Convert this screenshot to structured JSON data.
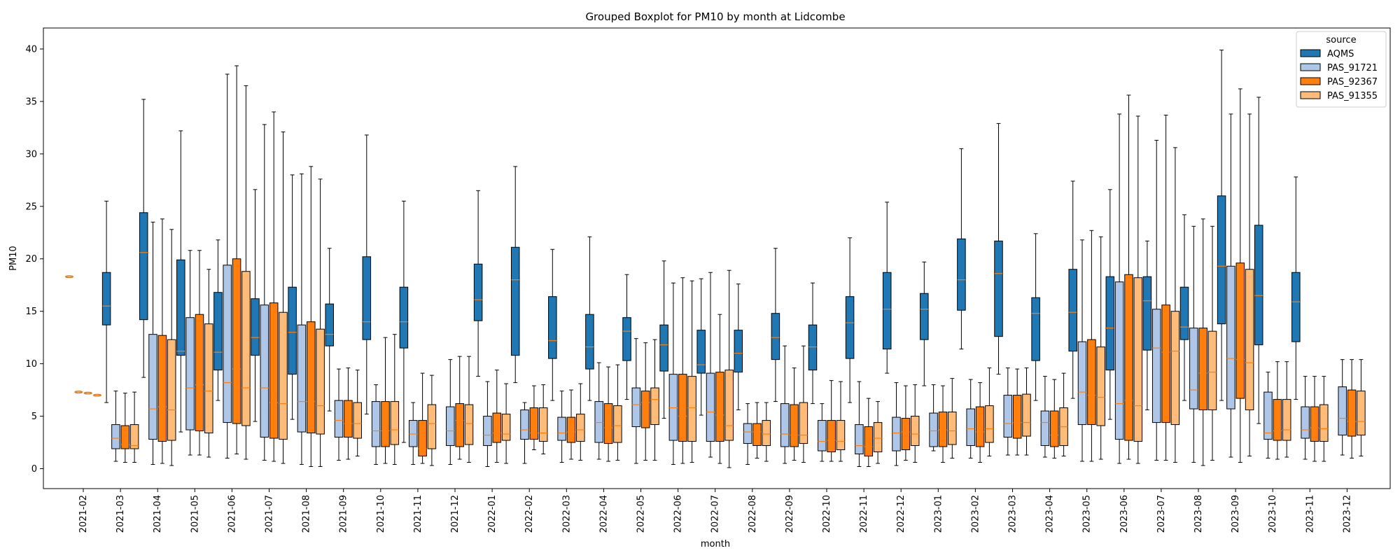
{
  "chart_data": {
    "type": "boxplot",
    "title": "Grouped Boxplot for PM10 by month at Lidcombe",
    "xlabel": "month",
    "ylabel": "PM10",
    "ylim": [
      -1.9,
      42.0
    ],
    "yticks": [
      0,
      5,
      10,
      15,
      20,
      25,
      30,
      35,
      40
    ],
    "grid": false,
    "legend": {
      "title": "source",
      "placement": "top-right"
    },
    "months": [
      "2021-02",
      "2021-03",
      "2021-04",
      "2021-05",
      "2021-06",
      "2021-07",
      "2021-08",
      "2021-09",
      "2021-10",
      "2021-11",
      "2021-12",
      "2022-01",
      "2022-02",
      "2022-03",
      "2022-04",
      "2022-05",
      "2022-06",
      "2022-07",
      "2022-08",
      "2022-09",
      "2022-10",
      "2022-11",
      "2022-12",
      "2023-01",
      "2023-02",
      "2023-03",
      "2023-04",
      "2023-05",
      "2023-06",
      "2023-07",
      "2023-08",
      "2023-09",
      "2023-10",
      "2023-11",
      "2023-12"
    ],
    "series": [
      {
        "name": "AQMS",
        "color": "#1f77b4",
        "boxes": [
          null,
          [
            6.3,
            13.7,
            15.5,
            18.7,
            25.5
          ],
          [
            8.7,
            14.2,
            20.6,
            24.4,
            35.2
          ],
          [
            3.5,
            10.8,
            11.2,
            19.9,
            32.2
          ],
          [
            6.5,
            9.4,
            11.1,
            16.8,
            21.8
          ],
          [
            4.5,
            10.8,
            12.5,
            16.2,
            26.6
          ],
          [
            4.7,
            9.0,
            13.0,
            17.3,
            28.0
          ],
          [
            5.5,
            11.7,
            12.8,
            15.7,
            21.0
          ],
          [
            5.2,
            12.3,
            14.0,
            20.2,
            31.8
          ],
          [
            2.5,
            11.5,
            14.0,
            17.3,
            25.5
          ],
          null,
          [
            8.8,
            14.1,
            16.1,
            19.5,
            26.5
          ],
          [
            8.2,
            10.8,
            18.0,
            21.1,
            28.8
          ],
          [
            6.5,
            10.5,
            12.2,
            16.4,
            20.9
          ],
          [
            6.5,
            9.5,
            11.6,
            14.7,
            22.1
          ],
          [
            6.6,
            10.3,
            13.1,
            14.4,
            18.5
          ],
          [
            4.8,
            9.3,
            11.8,
            13.7,
            19.8
          ],
          [
            5.1,
            9.1,
            9.9,
            13.2,
            18.1
          ],
          [
            5.6,
            9.2,
            11.0,
            13.2,
            17.6
          ],
          [
            6.4,
            10.4,
            12.5,
            14.8,
            21.0
          ],
          [
            6.2,
            9.4,
            11.6,
            13.7,
            17.7
          ],
          [
            6.3,
            10.5,
            13.9,
            16.4,
            22.0
          ],
          [
            9.1,
            11.4,
            15.2,
            18.7,
            25.4
          ],
          [
            7.9,
            12.3,
            15.2,
            16.7,
            19.7
          ],
          [
            11.4,
            15.1,
            18.0,
            21.9,
            30.5
          ],
          [
            9.0,
            12.6,
            18.6,
            21.7,
            32.9
          ],
          [
            6.5,
            10.3,
            14.8,
            16.3,
            22.4
          ],
          [
            6.7,
            11.2,
            14.9,
            19.0,
            27.4
          ],
          [
            4.7,
            9.4,
            13.4,
            18.3,
            26.6
          ],
          [
            5.6,
            11.3,
            16.0,
            18.3,
            21.7
          ],
          [
            6.5,
            12.3,
            13.5,
            17.3,
            24.2
          ],
          [
            6.5,
            13.8,
            19.3,
            26.0,
            39.9
          ],
          [
            4.3,
            11.8,
            16.5,
            23.2,
            35.4
          ],
          [
            6.6,
            12.1,
            15.9,
            18.7,
            27.8
          ],
          null
        ]
      },
      {
        "name": "PAS_91721",
        "color": "#aec7e8",
        "boxes": [
          null,
          [
            0.7,
            1.9,
            2.9,
            4.2,
            7.4
          ],
          [
            0.4,
            2.8,
            5.7,
            12.8,
            23.5
          ],
          [
            1.3,
            3.7,
            7.7,
            14.4,
            20.8
          ],
          [
            1.0,
            4.4,
            8.2,
            19.4,
            37.6
          ],
          [
            0.8,
            3.0,
            7.7,
            15.6,
            32.8
          ],
          [
            0.4,
            3.5,
            6.4,
            13.7,
            28.1
          ],
          [
            0.8,
            3.0,
            4.6,
            6.5,
            9.5
          ],
          [
            0.4,
            2.1,
            3.6,
            6.4,
            8.0
          ],
          [
            0.4,
            2.1,
            3.3,
            4.6,
            6.3
          ],
          [
            0.4,
            2.2,
            3.6,
            5.9,
            10.4
          ],
          [
            0.2,
            2.2,
            3.2,
            5.0,
            8.3
          ],
          [
            0.5,
            2.8,
            3.7,
            5.6,
            6.3
          ],
          [
            0.6,
            2.7,
            3.4,
            4.9,
            7.4
          ],
          [
            0.9,
            2.5,
            4.4,
            6.4,
            10.1
          ],
          [
            0.5,
            4.0,
            6.1,
            7.7,
            12.4
          ],
          [
            0.4,
            2.7,
            5.8,
            9.0,
            17.7
          ],
          [
            1.1,
            2.6,
            5.4,
            9.1,
            18.7
          ],
          [
            0.4,
            2.4,
            3.5,
            4.3,
            6.2
          ],
          [
            0.5,
            2.1,
            3.3,
            6.2,
            11.7
          ],
          [
            0.7,
            1.7,
            2.6,
            4.6,
            6.2
          ],
          [
            0.2,
            1.4,
            2.2,
            4.2,
            8.3
          ],
          [
            0.3,
            1.7,
            3.4,
            4.9,
            8.2
          ],
          [
            1.7,
            2.1,
            3.6,
            5.3,
            8.0
          ],
          [
            1.0,
            2.2,
            3.8,
            5.7,
            8.5
          ],
          [
            1.3,
            3.0,
            4.3,
            7.0,
            9.6
          ],
          [
            1.1,
            2.2,
            4.4,
            5.5,
            8.8
          ],
          [
            0.7,
            4.2,
            7.3,
            12.1,
            21.8
          ],
          [
            0.5,
            2.8,
            6.2,
            17.8,
            33.8
          ],
          [
            0.8,
            4.4,
            11.5,
            15.2,
            31.3
          ],
          [
            0.6,
            5.7,
            7.5,
            13.4,
            23.1
          ],
          [
            1.1,
            5.7,
            10.5,
            19.3,
            33.8
          ],
          [
            1.0,
            2.8,
            3.4,
            7.3,
            9.2
          ],
          [
            0.9,
            2.9,
            3.7,
            5.9,
            8.8
          ],
          [
            1.3,
            3.2,
            4.8,
            7.8,
            10.4
          ]
        ]
      },
      {
        "name": "PAS_92367",
        "color": "#ff7f0e",
        "boxes": [
          null,
          [
            0.6,
            1.9,
            2.3,
            4.1,
            7.2
          ],
          [
            0.5,
            2.6,
            5.9,
            12.7,
            23.8
          ],
          [
            1.3,
            3.6,
            8.0,
            14.7,
            20.8
          ],
          [
            1.4,
            4.3,
            9.5,
            20.0,
            38.4
          ],
          [
            0.7,
            2.9,
            6.3,
            15.8,
            34.0
          ],
          [
            0.2,
            3.4,
            6.4,
            14.0,
            28.8
          ],
          [
            0.9,
            3.0,
            4.3,
            6.5,
            9.6
          ],
          [
            0.5,
            2.1,
            3.6,
            6.4,
            12.5
          ],
          [
            0.5,
            1.2,
            1.9,
            4.6,
            9.1
          ],
          [
            0.9,
            2.1,
            4.6,
            6.2,
            10.7
          ],
          [
            0.6,
            2.5,
            3.4,
            5.3,
            9.4
          ],
          [
            1.8,
            2.8,
            3.4,
            5.8,
            7.9
          ],
          [
            0.9,
            2.5,
            3.5,
            4.9,
            7.5
          ],
          [
            0.7,
            2.4,
            3.9,
            6.2,
            9.7
          ],
          [
            0.8,
            3.9,
            6.3,
            7.4,
            12.0
          ],
          [
            0.5,
            2.6,
            5.0,
            9.0,
            18.2
          ],
          [
            0.5,
            2.6,
            5.1,
            9.2,
            14.7
          ],
          [
            1.0,
            2.2,
            3.5,
            4.3,
            6.3
          ],
          [
            0.8,
            2.1,
            3.2,
            6.1,
            9.6
          ],
          [
            0.7,
            1.6,
            2.7,
            4.6,
            8.4
          ],
          [
            0.2,
            1.2,
            2.1,
            4.0,
            6.7
          ],
          [
            0.8,
            1.8,
            3.5,
            4.8,
            7.9
          ],
          [
            0.6,
            2.1,
            3.7,
            5.4,
            7.9
          ],
          [
            0.6,
            2.1,
            3.5,
            5.9,
            8.2
          ],
          [
            1.3,
            2.9,
            4.4,
            7.0,
            9.5
          ],
          [
            1.0,
            2.1,
            3.2,
            5.5,
            8.5
          ],
          [
            0.7,
            4.2,
            7.0,
            12.3,
            22.7
          ],
          [
            0.9,
            2.7,
            6.5,
            18.5,
            35.6
          ],
          [
            0.8,
            4.4,
            11.1,
            15.6,
            33.7
          ],
          [
            0.3,
            5.6,
            9.1,
            13.4,
            23.8
          ],
          [
            0.6,
            6.7,
            10.4,
            19.6,
            36.2
          ],
          [
            0.9,
            2.7,
            3.6,
            6.6,
            10.2
          ],
          [
            0.7,
            2.6,
            3.9,
            5.9,
            8.8
          ],
          [
            1.0,
            3.1,
            4.5,
            7.5,
            10.4
          ]
        ]
      },
      {
        "name": "PAS_91355",
        "color": "#ffbb78",
        "boxes": [
          null,
          [
            0.6,
            1.9,
            2.2,
            4.2,
            7.3
          ],
          [
            0.3,
            2.7,
            5.6,
            12.3,
            22.8
          ],
          [
            1.1,
            3.4,
            7.4,
            13.8,
            19.0
          ],
          [
            0.9,
            4.1,
            7.7,
            18.8,
            36.5
          ],
          [
            0.5,
            2.8,
            6.2,
            14.9,
            32.1
          ],
          [
            0.2,
            3.3,
            6.0,
            13.3,
            27.6
          ],
          [
            1.2,
            2.9,
            4.3,
            6.3,
            9.4
          ],
          [
            0.4,
            2.3,
            3.7,
            6.4,
            12.8
          ],
          [
            0.3,
            1.9,
            4.3,
            6.1,
            8.9
          ],
          [
            0.6,
            2.3,
            4.3,
            6.1,
            10.7
          ],
          [
            0.5,
            2.7,
            3.3,
            5.2,
            8.1
          ],
          [
            1.4,
            2.6,
            3.4,
            5.8,
            8.0
          ],
          [
            0.8,
            2.6,
            3.7,
            5.2,
            8.1
          ],
          [
            0.8,
            2.5,
            4.1,
            6.0,
            9.9
          ],
          [
            0.8,
            4.2,
            6.6,
            7.7,
            12.3
          ],
          [
            0.6,
            2.6,
            5.8,
            8.8,
            17.9
          ],
          [
            0.1,
            2.7,
            4.1,
            9.4,
            18.9
          ],
          [
            0.7,
            2.2,
            3.3,
            4.6,
            6.3
          ],
          [
            0.6,
            2.4,
            3.2,
            6.3,
            11.7
          ],
          [
            0.7,
            1.8,
            2.6,
            4.6,
            8.3
          ],
          [
            0.5,
            1.6,
            2.9,
            4.4,
            6.4
          ],
          [
            0.6,
            2.2,
            3.3,
            5.0,
            8.0
          ],
          [
            1.0,
            2.3,
            3.6,
            5.4,
            8.6
          ],
          [
            1.2,
            2.5,
            3.8,
            6.0,
            9.6
          ],
          [
            1.3,
            3.1,
            4.4,
            7.1,
            9.6
          ],
          [
            1.2,
            2.2,
            4.0,
            5.8,
            9.1
          ],
          [
            0.9,
            4.1,
            6.8,
            11.6,
            22.1
          ],
          [
            0.5,
            2.6,
            6.0,
            18.2,
            33.6
          ],
          [
            0.6,
            4.2,
            11.2,
            15.0,
            30.6
          ],
          [
            0.8,
            5.6,
            9.2,
            13.1,
            23.1
          ],
          [
            1.2,
            5.6,
            10.1,
            19.0,
            33.8
          ],
          [
            1.1,
            2.7,
            3.7,
            6.6,
            10.2
          ],
          [
            0.7,
            2.6,
            3.8,
            6.1,
            8.8
          ],
          [
            1.2,
            3.2,
            4.5,
            7.4,
            10.4
          ]
        ]
      }
    ],
    "outliers": [
      {
        "month": "2021-02",
        "series": "AQMS",
        "values": [
          18.3
        ]
      },
      {
        "month": "2021-02",
        "series": "PAS_91721",
        "values": [
          7.3
        ]
      },
      {
        "month": "2021-02",
        "series": "PAS_92367",
        "values": [
          7.2
        ]
      },
      {
        "month": "2021-02",
        "series": "PAS_91355",
        "values": [
          7.0
        ]
      }
    ]
  }
}
